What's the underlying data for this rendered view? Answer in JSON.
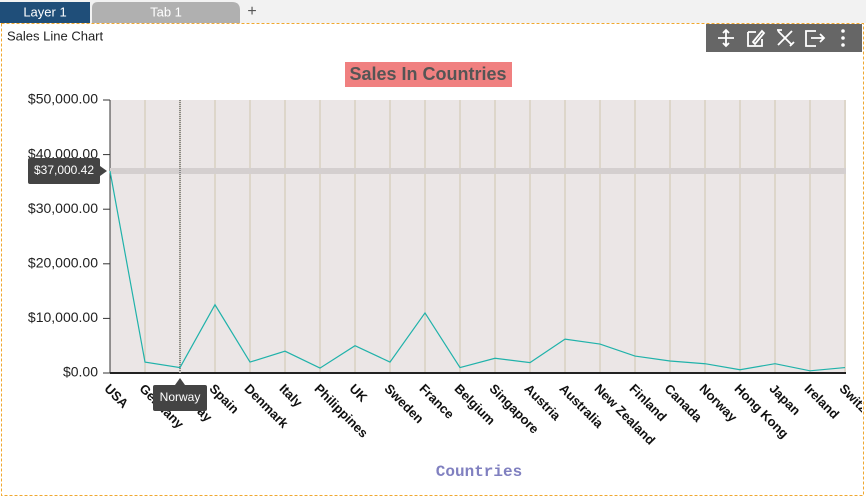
{
  "tabs": [
    "Layer 1",
    "Tab 1",
    "+"
  ],
  "widget_title": "Sales Line Chart",
  "chart_data": {
    "type": "line",
    "title": "Sales In Countries",
    "x_label": "Countries",
    "categories": [
      "USA",
      "Germany",
      "Norway",
      "Spain",
      "Denmark",
      "Italy",
      "Philippines",
      "UK",
      "Sweden",
      "France",
      "Belgium",
      "Singapore",
      "Austria",
      "Australia",
      "New Zealand",
      "Finland",
      "Canada",
      "Norway",
      "Hong Kong",
      "Japan",
      "Ireland",
      "Switzerland"
    ],
    "series": [
      {
        "name": "Sales",
        "color": "#20b2aa",
        "values": [
          37000.42,
          2000,
          1000,
          12500,
          2000,
          4000,
          900,
          5000,
          2000,
          11000,
          1000,
          2700,
          1900,
          6200,
          5300,
          3100,
          2200,
          1700,
          600,
          1700,
          400,
          1000
        ]
      }
    ],
    "ylim": [
      0,
      50000
    ],
    "yticks": [
      {
        "value": 0,
        "label": "$0.00"
      },
      {
        "value": 10000,
        "label": "$10,000.00"
      },
      {
        "value": 20000,
        "label": "$20,000.00"
      },
      {
        "value": 30000,
        "label": "$30,000.00"
      },
      {
        "value": 40000,
        "label": "$40,000.00"
      },
      {
        "value": 50000,
        "label": "$50,000.00"
      }
    ],
    "grid": true,
    "crosshair": {
      "x": "Norway",
      "y": {
        "value": 37000.42,
        "label": "$37,000.42"
      }
    }
  }
}
